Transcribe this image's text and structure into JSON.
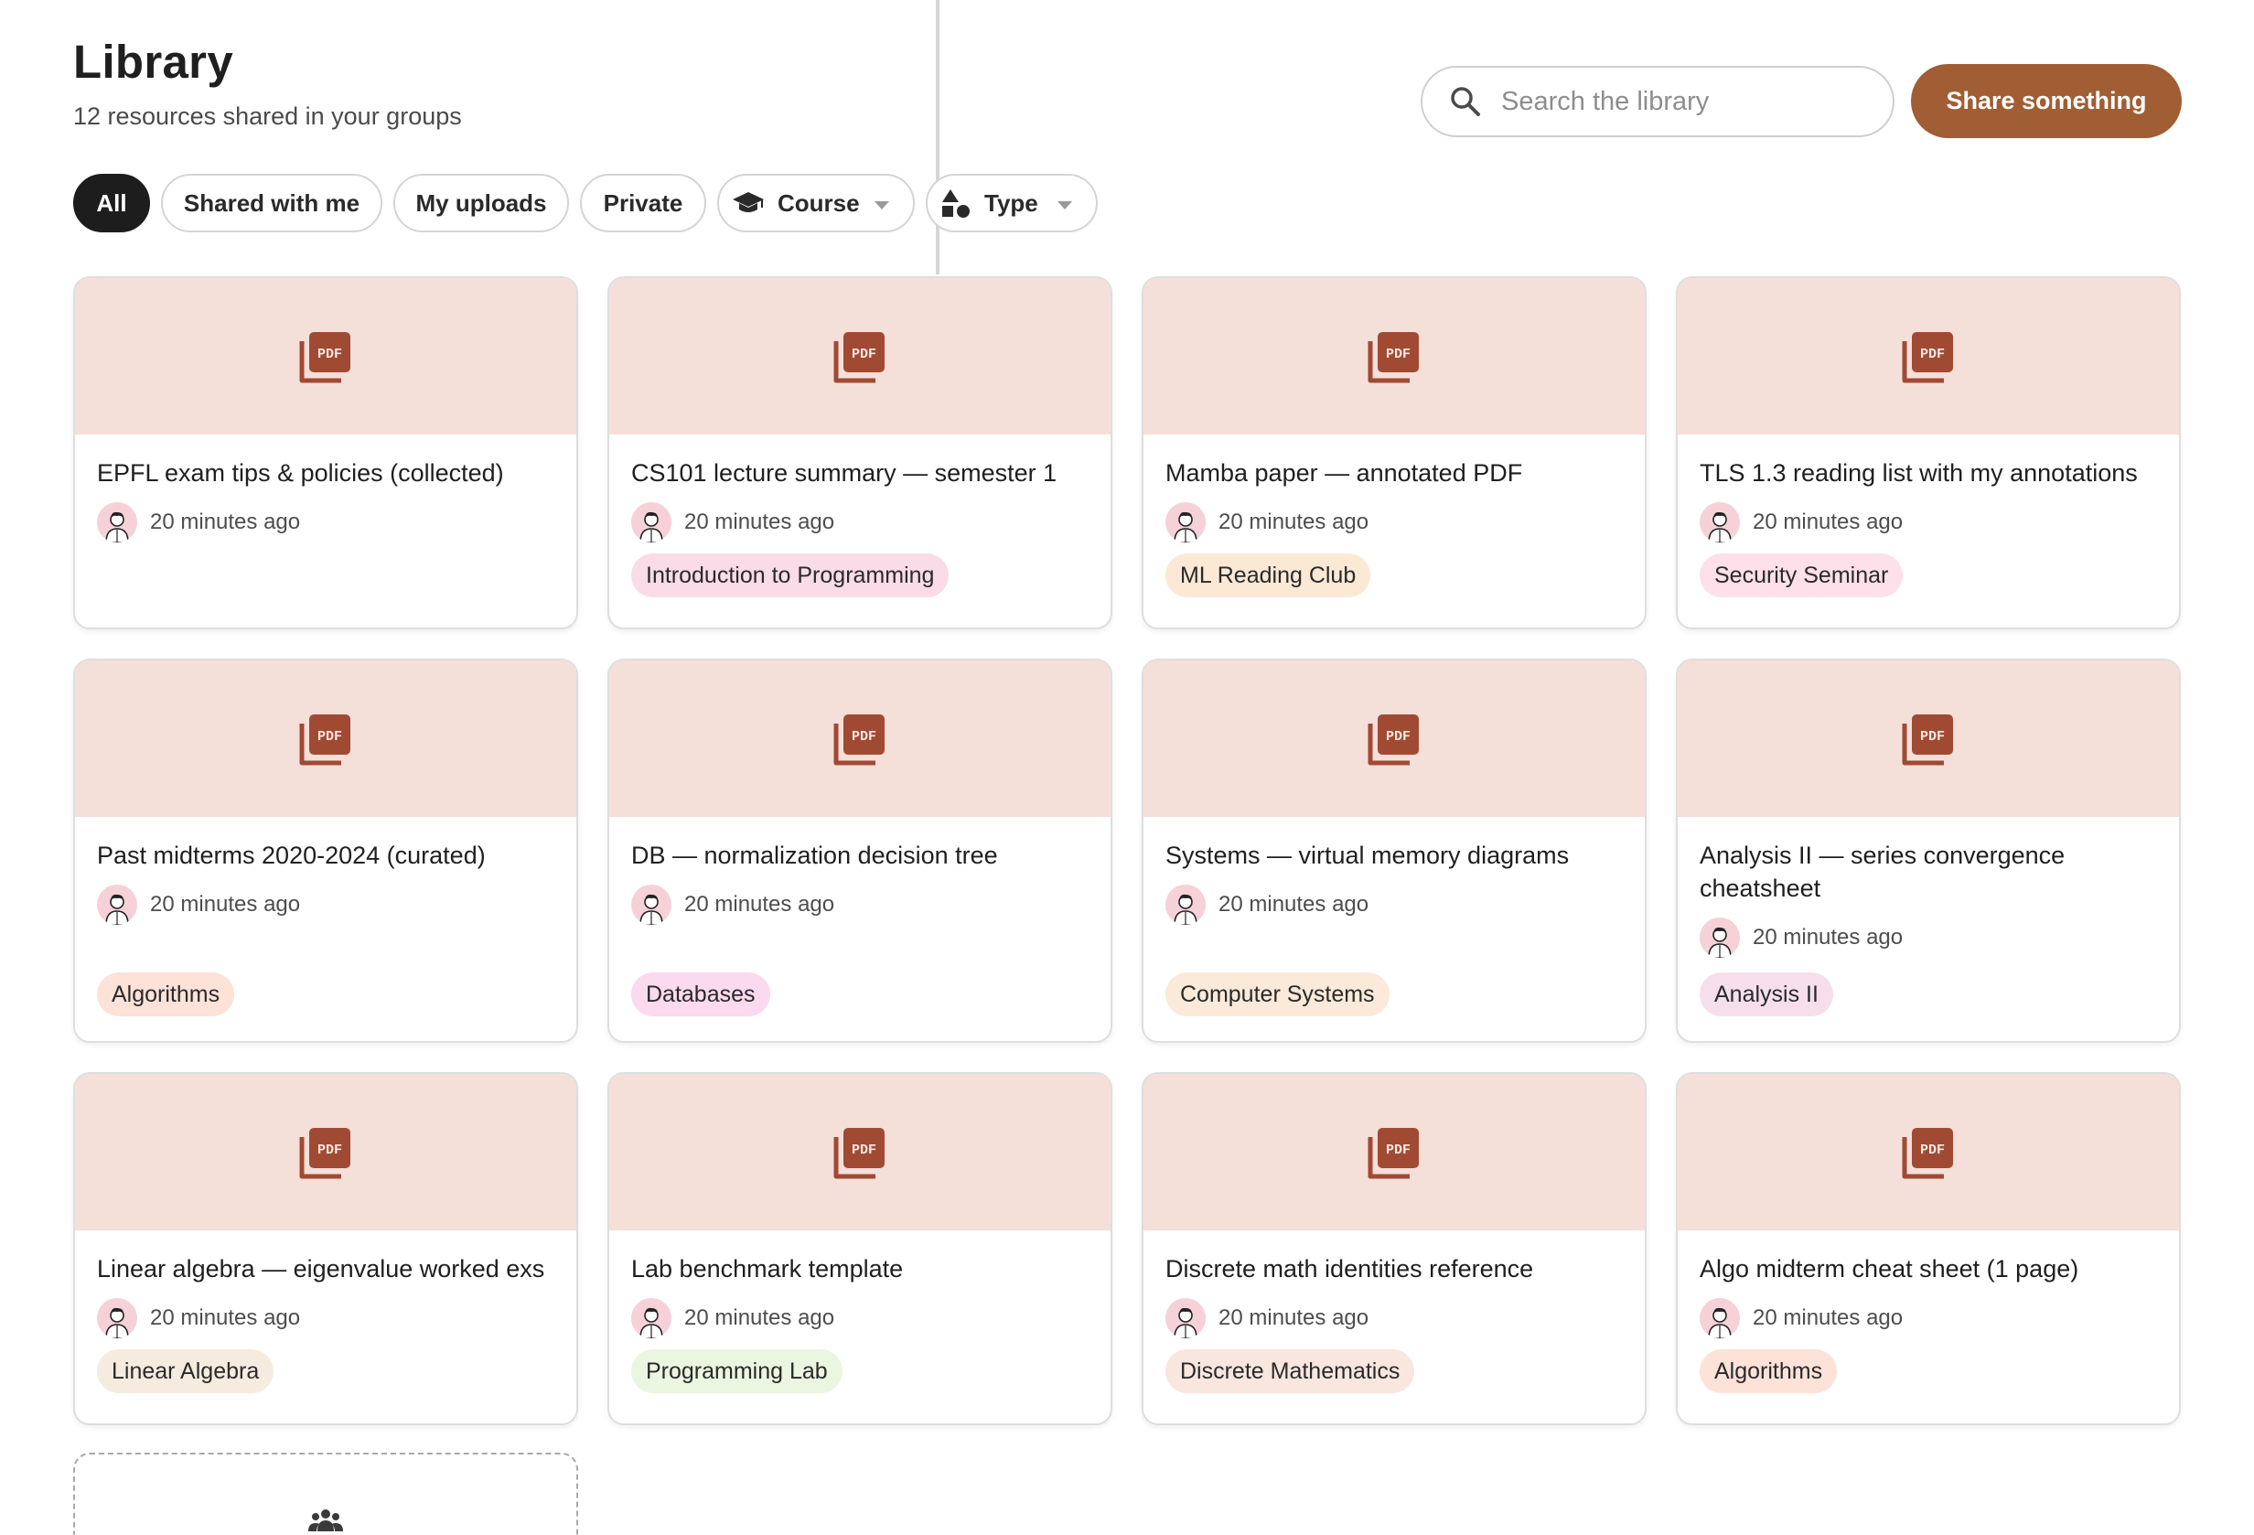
{
  "header": {
    "title": "Library",
    "subtitle": "12 resources shared in your groups"
  },
  "search": {
    "placeholder": "Search the library",
    "value": ""
  },
  "share_button": "Share something",
  "filters": {
    "all": "All",
    "shared": "Shared with me",
    "uploads": "My uploads",
    "private": "Private",
    "course": "Course",
    "type": "Type",
    "active": "All"
  },
  "cards": [
    {
      "title": "EPFL exam tips & policies (collected)",
      "time": "20 minutes ago",
      "tag": "",
      "tag_color": ""
    },
    {
      "title": "CS101 lecture summary — semester 1",
      "time": "20 minutes ago",
      "tag": "Introduction to Programming",
      "tag_color": "#f9dce8"
    },
    {
      "title": "Mamba paper — annotated PDF",
      "time": "20 minutes ago",
      "tag": "ML Reading Club",
      "tag_color": "#fbe9d6"
    },
    {
      "title": "TLS 1.3 reading list with my annotations",
      "time": "20 minutes ago",
      "tag": "Security Seminar",
      "tag_color": "#fde0ea"
    },
    {
      "title": "Past midterms 2020-2024 (curated)",
      "time": "20 minutes ago",
      "tag": "Algorithms",
      "tag_color": "#fde2d8"
    },
    {
      "title": "DB — normalization decision tree",
      "time": "20 minutes ago",
      "tag": "Databases",
      "tag_color": "#fbd9ee"
    },
    {
      "title": "Systems — virtual memory diagrams",
      "time": "20 minutes ago",
      "tag": "Computer Systems",
      "tag_color": "#fbe9d9"
    },
    {
      "title": "Analysis II — series convergence cheatsheet",
      "time": "20 minutes ago",
      "tag": "Analysis II",
      "tag_color": "#f6dfea"
    },
    {
      "title": "Linear algebra — eigenvalue worked exs",
      "time": "20 minutes ago",
      "tag": "Linear Algebra",
      "tag_color": "#f6ebdf"
    },
    {
      "title": "Lab benchmark template",
      "time": "20 minutes ago",
      "tag": "Programming Lab",
      "tag_color": "#eaf6df"
    },
    {
      "title": "Discrete math identities reference",
      "time": "20 minutes ago",
      "tag": "Discrete Mathematics",
      "tag_color": "#f8e6df"
    },
    {
      "title": "Algo midterm cheat sheet (1 page)",
      "time": "20 minutes ago",
      "tag": "Algorithms",
      "tag_color": "#fde2d8"
    }
  ],
  "colors": {
    "accent": "#a15d33",
    "thumb_bg": "#f4dfd9",
    "pdf_icon": "#a14a33",
    "active_chip": "#1d1d1d"
  },
  "icons": {
    "search": "search-icon",
    "pdf": "pdf-file-icon",
    "course": "graduation-cap-icon",
    "type": "shapes-icon",
    "group": "group-icon",
    "avatar": "user-avatar"
  }
}
